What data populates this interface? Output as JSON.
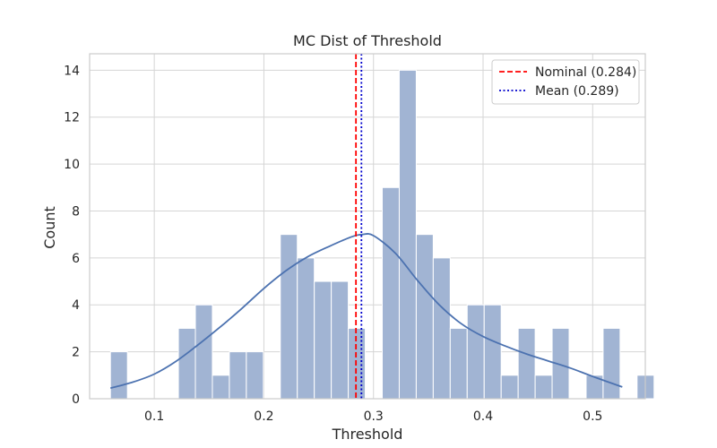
{
  "chart_data": {
    "type": "bar",
    "title": "MC Dist of Threshold",
    "xlabel": "Threshold",
    "ylabel": "Count",
    "xlim": [
      0.041,
      0.548
    ],
    "ylim": [
      0,
      14.7
    ],
    "bin_start": 0.06,
    "bin_width": 0.0155,
    "x_ticks": [
      "0.1",
      "0.2",
      "0.3",
      "0.4",
      "0.5"
    ],
    "x_tick_values": [
      0.1,
      0.2,
      0.3,
      0.4,
      0.5
    ],
    "y_ticks": [
      "0",
      "2",
      "4",
      "6",
      "8",
      "10",
      "12",
      "14"
    ],
    "y_tick_values": [
      0,
      2,
      4,
      6,
      8,
      10,
      12,
      14
    ],
    "counts": [
      2,
      0,
      0,
      0,
      3,
      4,
      1,
      2,
      2,
      0,
      7,
      6,
      5,
      5,
      3,
      0,
      9,
      14,
      7,
      6,
      3,
      4,
      4,
      1,
      3,
      1,
      3,
      0,
      1,
      3,
      0,
      1
    ],
    "kde": {
      "x": [
        0.06,
        0.08,
        0.1,
        0.12,
        0.14,
        0.16,
        0.18,
        0.2,
        0.22,
        0.24,
        0.26,
        0.28,
        0.29,
        0.3,
        0.32,
        0.34,
        0.36,
        0.38,
        0.4,
        0.42,
        0.44,
        0.46,
        0.48,
        0.5,
        0.527
      ],
      "y": [
        0.45,
        0.7,
        1.05,
        1.6,
        2.3,
        3.05,
        3.85,
        4.7,
        5.45,
        6.05,
        6.5,
        6.9,
        7.0,
        6.95,
        6.2,
        5.05,
        4.0,
        3.2,
        2.65,
        2.25,
        1.9,
        1.6,
        1.3,
        0.95,
        0.5
      ]
    },
    "nominal": {
      "value": 0.284,
      "label": "Nominal (0.284)"
    },
    "mean": {
      "value": 0.289,
      "label": "Mean (0.289)"
    },
    "colors": {
      "bar_fill": "#a1b4d3",
      "bar_edge": "#ffffff",
      "kde": "#4c72b0",
      "nominal": "#ff0000",
      "mean": "#0000cc",
      "grid": "#d5d5d5",
      "frame": "#cccccc"
    },
    "grid": true,
    "legend_position": "top-right"
  }
}
